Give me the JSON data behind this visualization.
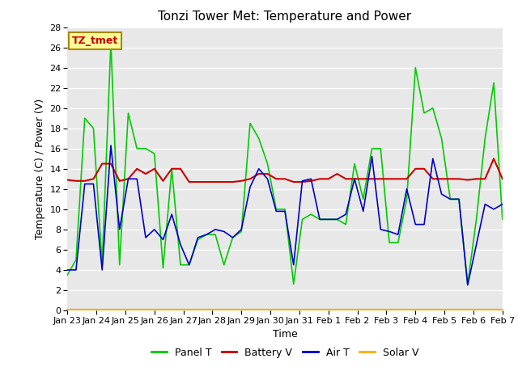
{
  "title": "Tonzi Tower Met: Temperature and Power",
  "ylabel": "Temperature (C) / Power (V)",
  "xlabel": "Time",
  "ylim": [
    0,
    28
  ],
  "xtick_labels": [
    "Jan 23",
    "Jan 24",
    "Jan 25",
    "Jan 26",
    "Jan 27",
    "Jan 28",
    "Jan 29",
    "Jan 30",
    "Jan 31",
    "Feb 1",
    "Feb 2",
    "Feb 3",
    "Feb 4",
    "Feb 5",
    "Feb 6",
    "Feb 7"
  ],
  "annotation_text": "TZ_tmet",
  "annotation_color": "#cc0000",
  "annotation_bg": "#ffff99",
  "annotation_border": "#aa8800",
  "bg_color": "#e8e8e8",
  "panel_t_color": "#00cc00",
  "battery_v_color": "#cc0000",
  "air_t_color": "#0000cc",
  "solar_v_color": "#ffaa00",
  "panel_t": [
    3.5,
    5.0,
    19.0,
    18.0,
    4.5,
    26.5,
    4.5,
    19.5,
    16.0,
    16.0,
    15.5,
    4.2,
    14.0,
    4.5,
    4.5,
    7.0,
    7.5,
    7.5,
    4.5,
    7.2,
    7.8,
    18.5,
    17.0,
    14.5,
    10.0,
    10.0,
    2.6,
    9.0,
    9.5,
    9.0,
    9.0,
    9.0,
    8.5,
    14.5,
    11.0,
    16.0,
    16.0,
    6.7,
    6.7,
    11.0,
    24.0,
    19.5,
    20.0,
    17.0,
    11.0,
    11.0,
    2.6,
    9.0,
    17.0,
    22.5,
    9.0
  ],
  "battery_v": [
    12.9,
    12.8,
    12.8,
    13.0,
    14.5,
    14.5,
    12.8,
    13.0,
    14.0,
    13.5,
    14.0,
    12.8,
    14.0,
    14.0,
    12.7,
    12.7,
    12.7,
    12.7,
    12.7,
    12.7,
    12.8,
    13.0,
    13.5,
    13.5,
    13.0,
    13.0,
    12.7,
    12.7,
    12.8,
    13.0,
    13.0,
    13.5,
    13.0,
    13.0,
    13.0,
    13.0,
    13.0,
    13.0,
    13.0,
    13.0,
    14.0,
    14.0,
    13.0,
    13.0,
    13.0,
    13.0,
    12.9,
    13.0,
    13.0,
    15.0,
    13.0
  ],
  "air_t": [
    4.0,
    4.0,
    12.5,
    12.5,
    4.0,
    16.3,
    8.0,
    13.0,
    13.0,
    7.2,
    8.0,
    7.0,
    9.5,
    6.5,
    4.5,
    7.2,
    7.5,
    8.0,
    7.8,
    7.2,
    8.0,
    12.2,
    14.0,
    13.0,
    9.8,
    9.8,
    4.5,
    12.8,
    13.0,
    9.0,
    9.0,
    9.0,
    9.5,
    13.0,
    9.8,
    15.2,
    8.0,
    7.8,
    7.5,
    12.0,
    8.5,
    8.5,
    15.0,
    11.5,
    11.0,
    11.0,
    2.5,
    6.5,
    10.5,
    10.0,
    10.5
  ],
  "solar_v": [
    0.1,
    0.1,
    0.1,
    0.1,
    0.1,
    0.1,
    0.1,
    0.1,
    0.1,
    0.1,
    0.1,
    0.1,
    0.1,
    0.1,
    0.1,
    0.1,
    0.1,
    0.1,
    0.1,
    0.1,
    0.1,
    0.1,
    0.1,
    0.1,
    0.1,
    0.1,
    0.1,
    0.1,
    0.1,
    0.1,
    0.1,
    0.1,
    0.1,
    0.1,
    0.1,
    0.1,
    0.1,
    0.1,
    0.1,
    0.1,
    0.1,
    0.1,
    0.1,
    0.1,
    0.1,
    0.1,
    0.1,
    0.1,
    0.1,
    0.1,
    0.1
  ],
  "legend_labels": [
    "Panel T",
    "Battery V",
    "Air T",
    "Solar V"
  ],
  "legend_colors": [
    "#00cc00",
    "#cc0000",
    "#0000cc",
    "#ffaa00"
  ],
  "title_fontsize": 11,
  "label_fontsize": 9,
  "tick_fontsize": 8,
  "legend_fontsize": 9
}
